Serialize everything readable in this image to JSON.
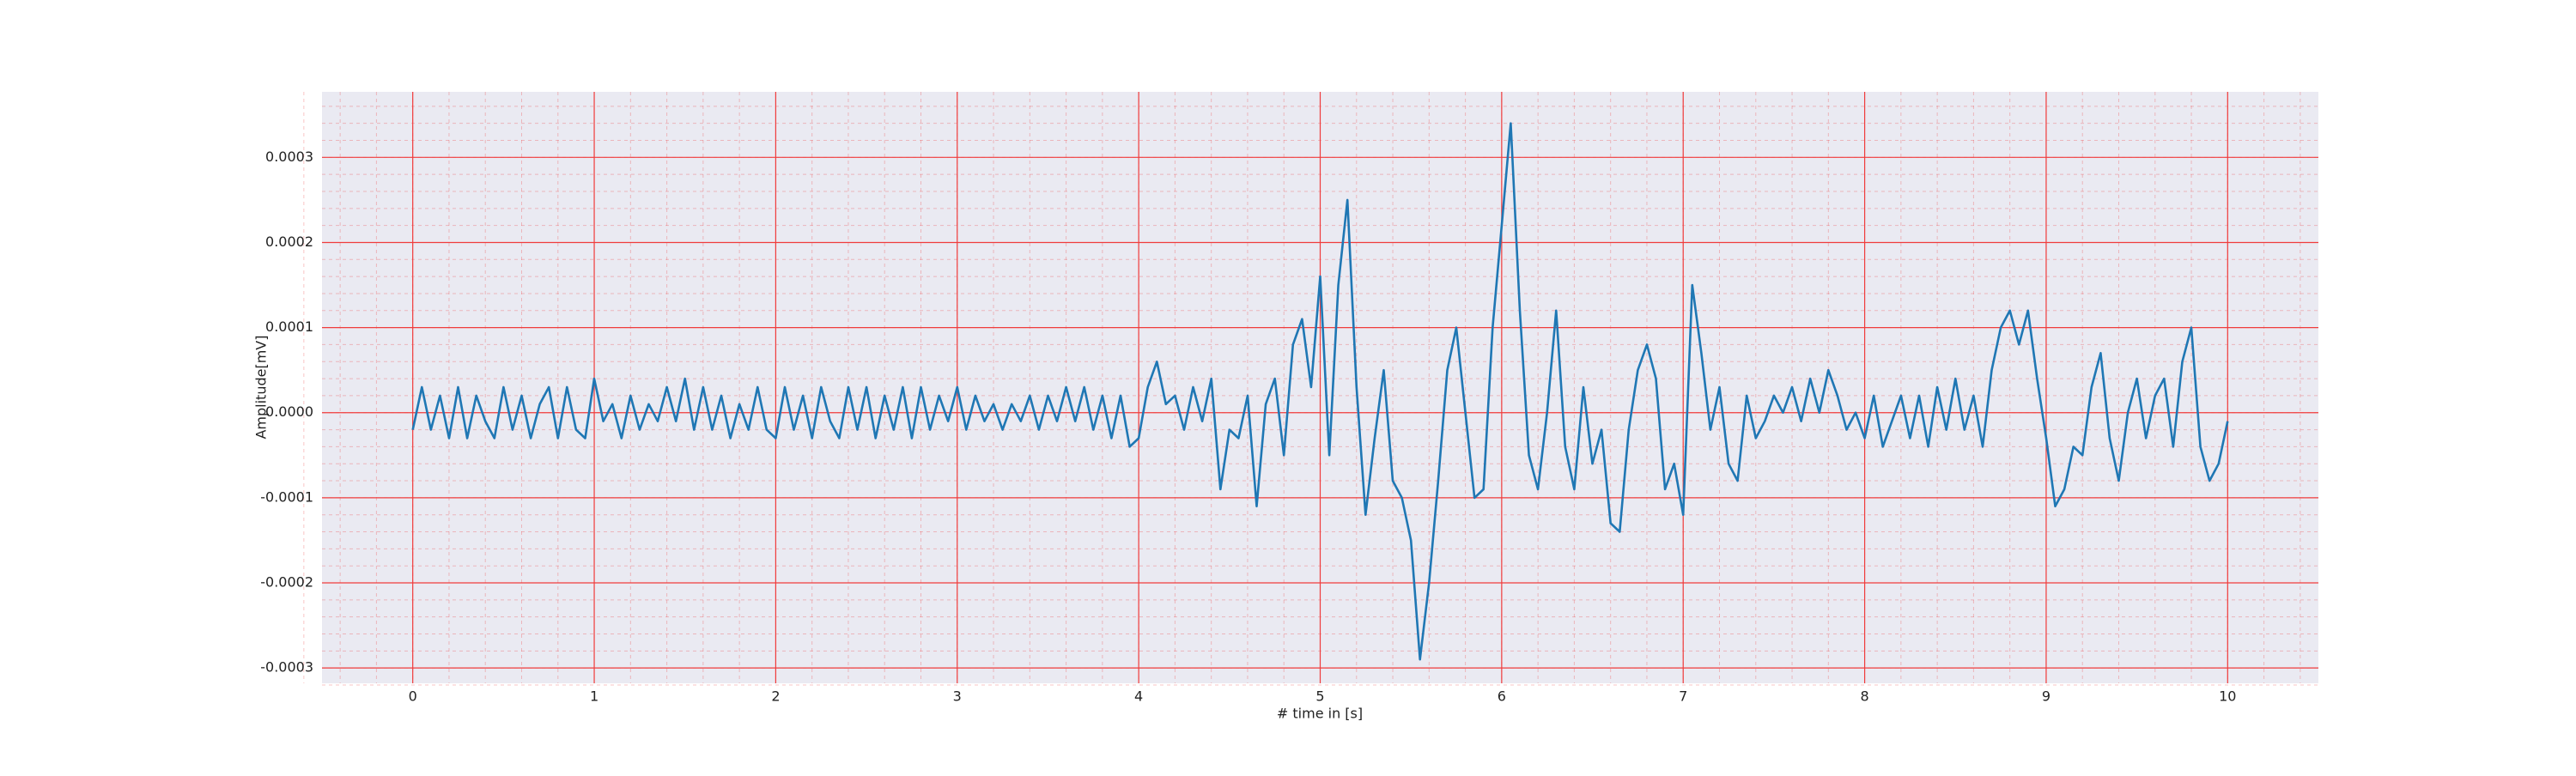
{
  "chart_data": {
    "type": "line",
    "xlabel": "# time in [s]",
    "ylabel": "Amplitude[mV]",
    "xlim": [
      -0.5,
      10.5
    ],
    "xticks": [
      0,
      1,
      2,
      3,
      4,
      5,
      6,
      7,
      8,
      9,
      10
    ],
    "ylim": [
      -0.000318,
      0.000377
    ],
    "yticks": [
      -0.0003,
      -0.0002,
      -0.0001,
      {
        "value": 0,
        "label": "0.0000"
      },
      0.0001,
      0.0002,
      0.0003
    ],
    "grid": true,
    "grid_color": "#f03c3c",
    "minor_grid": true,
    "minor_divisions": 5,
    "background": "#eaeaf2",
    "series": [
      {
        "color": "#1f77b4",
        "x": [
          0,
          0.05,
          0.1,
          0.15,
          0.2,
          0.25,
          0.3,
          0.35,
          0.4,
          0.45,
          0.5,
          0.55,
          0.6,
          0.65,
          0.7,
          0.75,
          0.8,
          0.85,
          0.9,
          0.95,
          1,
          1.05,
          1.1,
          1.15,
          1.2,
          1.25,
          1.3,
          1.35,
          1.4,
          1.45,
          1.5,
          1.55,
          1.6,
          1.65,
          1.7,
          1.75,
          1.8,
          1.85,
          1.9,
          1.95,
          2,
          2.05,
          2.1,
          2.15,
          2.2,
          2.25,
          2.3,
          2.35,
          2.4,
          2.45,
          2.5,
          2.55,
          2.6,
          2.65,
          2.7,
          2.75,
          2.8,
          2.85,
          2.9,
          2.95,
          3,
          3.05,
          3.1,
          3.15,
          3.2,
          3.25,
          3.3,
          3.35,
          3.4,
          3.45,
          3.5,
          3.55,
          3.6,
          3.65,
          3.7,
          3.75,
          3.8,
          3.85,
          3.9,
          3.95,
          4,
          4.05,
          4.1,
          4.15,
          4.2,
          4.25,
          4.3,
          4.35,
          4.4,
          4.45,
          4.5,
          4.55,
          4.6,
          4.65,
          4.7,
          4.75,
          4.8,
          4.85,
          4.9,
          4.95,
          5,
          5.05,
          5.1,
          5.15,
          5.2,
          5.25,
          5.3,
          5.35,
          5.4,
          5.45,
          5.5,
          5.55,
          5.6,
          5.65,
          5.7,
          5.75,
          5.8,
          5.85,
          5.9,
          5.95,
          6,
          6.05,
          6.1,
          6.15,
          6.2,
          6.25,
          6.3,
          6.35,
          6.4,
          6.45,
          6.5,
          6.55,
          6.6,
          6.65,
          6.7,
          6.75,
          6.8,
          6.85,
          6.9,
          6.95,
          7,
          7.05,
          7.1,
          7.15,
          7.2,
          7.25,
          7.3,
          7.35,
          7.4,
          7.45,
          7.5,
          7.55,
          7.6,
          7.65,
          7.7,
          7.75,
          7.8,
          7.85,
          7.9,
          7.95,
          8,
          8.05,
          8.1,
          8.15,
          8.2,
          8.25,
          8.3,
          8.35,
          8.4,
          8.45,
          8.5,
          8.55,
          8.6,
          8.65,
          8.7,
          8.75,
          8.8,
          8.85,
          8.9,
          8.95,
          9,
          9.05,
          9.1,
          9.15,
          9.2,
          9.25,
          9.3,
          9.35,
          9.4,
          9.45,
          9.5,
          9.55,
          9.6,
          9.65,
          9.7,
          9.75,
          9.8,
          9.85,
          9.9,
          9.95,
          10
        ],
        "values": [
          -2e-05,
          3e-05,
          -2e-05,
          2e-05,
          -3e-05,
          3e-05,
          -3e-05,
          2e-05,
          -1e-05,
          -3e-05,
          3e-05,
          -2e-05,
          2e-05,
          -3e-05,
          1e-05,
          3e-05,
          -3e-05,
          3e-05,
          -2e-05,
          -3e-05,
          4e-05,
          -1e-05,
          1e-05,
          -3e-05,
          2e-05,
          -2e-05,
          1e-05,
          -1e-05,
          3e-05,
          -1e-05,
          4e-05,
          -2e-05,
          3e-05,
          -2e-05,
          2e-05,
          -3e-05,
          1e-05,
          -2e-05,
          3e-05,
          -2e-05,
          -3e-05,
          3e-05,
          -2e-05,
          2e-05,
          -3e-05,
          3e-05,
          -1e-05,
          -3e-05,
          3e-05,
          -2e-05,
          3e-05,
          -3e-05,
          2e-05,
          -2e-05,
          3e-05,
          -3e-05,
          3e-05,
          -2e-05,
          2e-05,
          -1e-05,
          3e-05,
          -2e-05,
          2e-05,
          -1e-05,
          1e-05,
          -2e-05,
          1e-05,
          -1e-05,
          2e-05,
          -2e-05,
          2e-05,
          -1e-05,
          3e-05,
          -1e-05,
          3e-05,
          -2e-05,
          2e-05,
          -3e-05,
          2e-05,
          -4e-05,
          -3e-05,
          3e-05,
          6e-05,
          1e-05,
          2e-05,
          -2e-05,
          3e-05,
          -1e-05,
          4e-05,
          -9e-05,
          -2e-05,
          -3e-05,
          2e-05,
          -0.00011,
          1e-05,
          4e-05,
          -5e-05,
          8e-05,
          0.00011,
          3e-05,
          0.00016,
          -5e-05,
          0.00015,
          0.00025,
          3e-05,
          -0.00012,
          -3e-05,
          5e-05,
          -8e-05,
          -0.0001,
          -0.00015,
          -0.00029,
          -0.0002,
          -8e-05,
          5e-05,
          0.0001,
          0,
          -0.0001,
          -9e-05,
          0.0001,
          0.00022,
          0.00034,
          0.00012,
          -5e-05,
          -9e-05,
          0,
          0.00012,
          -4e-05,
          -9e-05,
          3e-05,
          -6e-05,
          -2e-05,
          -0.00013,
          -0.00014,
          -2e-05,
          5e-05,
          8e-05,
          4e-05,
          -9e-05,
          -6e-05,
          -0.00012,
          0.00015,
          7e-05,
          -2e-05,
          3e-05,
          -6e-05,
          -8e-05,
          2e-05,
          -3e-05,
          -1e-05,
          2e-05,
          0,
          3e-05,
          -1e-05,
          4e-05,
          0,
          5e-05,
          2e-05,
          -2e-05,
          0,
          -3e-05,
          2e-05,
          -4e-05,
          -1e-05,
          2e-05,
          -3e-05,
          2e-05,
          -4e-05,
          3e-05,
          -2e-05,
          4e-05,
          -2e-05,
          2e-05,
          -4e-05,
          5e-05,
          0.0001,
          0.00012,
          8e-05,
          0.00012,
          4e-05,
          -3e-05,
          -0.00011,
          -9e-05,
          -4e-05,
          -5e-05,
          3e-05,
          7e-05,
          -3e-05,
          -8e-05,
          0,
          4e-05,
          -3e-05,
          2e-05,
          4e-05,
          -4e-05,
          6e-05,
          0.0001,
          -4e-05,
          -8e-05,
          -6e-05,
          -1e-05
        ]
      }
    ]
  }
}
